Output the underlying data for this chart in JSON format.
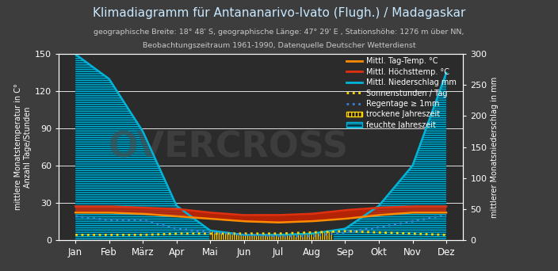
{
  "title": "Klimadiagramm für Antananarivo-Ivato (Flugh.) / Madagaskar",
  "subtitle1": "geographische Breite: 18° 48' S, geographische Länge: 47° 29' E , Stationshöhe: 1276 m über NN,",
  "subtitle2": "Beobachtungszeitraum 1961-1990, Datenquelle Deutscher Wetterdienst",
  "months": [
    "Jan",
    "Feb",
    "März",
    "Apr",
    "Mai",
    "Jun",
    "Jul",
    "Aug",
    "Sep",
    "Okt",
    "Nov",
    "Dez"
  ],
  "niederschlag_mm": [
    300,
    260,
    175,
    55,
    15,
    8,
    8,
    10,
    18,
    55,
    120,
    270
  ],
  "tag_temp": [
    22,
    22,
    21,
    19,
    17,
    15,
    14,
    15,
    17,
    20,
    22,
    22
  ],
  "hoechst_temp": [
    27,
    27,
    26,
    25,
    22,
    20,
    20,
    21,
    24,
    26,
    27,
    27
  ],
  "sonnenstunden": [
    4,
    4,
    4,
    5,
    5,
    5,
    5,
    6,
    7,
    6,
    5,
    4
  ],
  "regentage": [
    19,
    16,
    16,
    9,
    6,
    4,
    3,
    3,
    6,
    10,
    15,
    20
  ],
  "background_color": "#3d3d3d",
  "plot_bg_color": "#2b2b2b",
  "line_niederschlag_color": "#00b4d8",
  "line_tag_temp_color": "#ff8c00",
  "line_hoechst_temp_color": "#e03010",
  "line_sonnenstunden_color": "#ffd700",
  "line_regentage_color": "#3a7fd5",
  "fill_feuchte_facecolor": "#003344",
  "fill_feuchte_edgecolor": "#00b4d8",
  "fill_trockene_facecolor": "#1a1200",
  "fill_trockene_edgecolor": "#ffd700",
  "fill_temp_color": "#cc2200",
  "grid_color": "#ffffff",
  "text_color": "#ffffff",
  "title_color": "#c8e8ff",
  "subtitle_color": "#c8c8c8",
  "watermark_color": "#555555",
  "ylim_left": [
    0,
    150
  ],
  "ylim_right": [
    0,
    300
  ],
  "yticks_left": [
    0,
    30,
    60,
    90,
    120,
    150
  ],
  "yticks_right": [
    0,
    50,
    100,
    150,
    200,
    250,
    300
  ],
  "ylabel_left1": "mittlere Monatstemperatur in C°",
  "ylabel_left2": "Anzahl Tage/Stunden",
  "ylabel_right": "mittlerer Monatsniederschlag in mm"
}
